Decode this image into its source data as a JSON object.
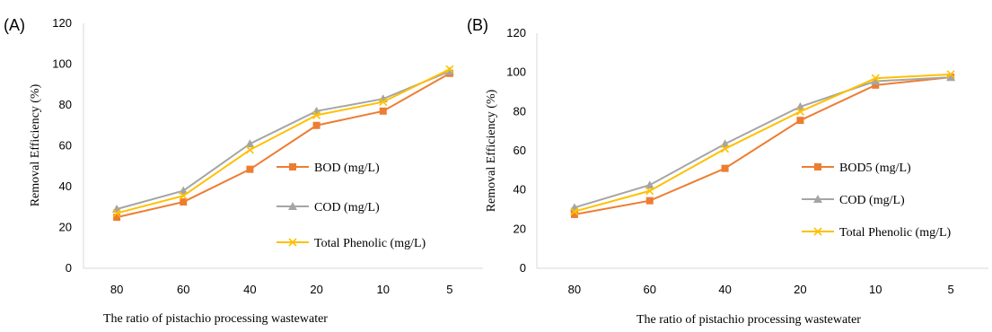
{
  "chart_data": [
    {
      "type": "line",
      "panel_label": "(A)",
      "categories": [
        "80",
        "60",
        "40",
        "20",
        "10",
        "5"
      ],
      "xlabel": "The ratio of pistachio processing wastewater",
      "ylabel": "Removal Efficiency (%)",
      "ylim": [
        0,
        120
      ],
      "yticks": [
        "0",
        "20",
        "40",
        "60",
        "80",
        "100",
        "120"
      ],
      "grid": false,
      "legend_position": "center-right",
      "series": [
        {
          "name": "BOD (mg/L)",
          "color": "#ED7D31",
          "marker": "square",
          "values": [
            25,
            32.5,
            48.5,
            70,
            77,
            95.5
          ]
        },
        {
          "name": "COD (mg/L)",
          "color": "#A5A5A5",
          "marker": "triangle",
          "values": [
            29,
            38,
            61,
            77,
            83,
            96.5
          ]
        },
        {
          "name": "Total Phenolic (mg/L)",
          "color": "#FFC000",
          "marker": "x",
          "values": [
            27,
            35.5,
            58,
            75,
            81.5,
            97.5
          ]
        }
      ]
    },
    {
      "type": "line",
      "panel_label": "(B)",
      "categories": [
        "80",
        "60",
        "40",
        "20",
        "10",
        "5"
      ],
      "xlabel": "The ratio of pistachio processing wastewater",
      "ylabel": "Removal Efficiency (%)",
      "ylim": [
        0,
        120
      ],
      "yticks": [
        "0",
        "20",
        "40",
        "60",
        "80",
        "100",
        "120"
      ],
      "grid": false,
      "legend_position": "center-right",
      "series": [
        {
          "name": "BOD5 (mg/L)",
          "color": "#ED7D31",
          "marker": "square",
          "values": [
            27.5,
            34.5,
            51,
            75.5,
            93.5,
            97.5
          ]
        },
        {
          "name": "COD (mg/L)",
          "color": "#A5A5A5",
          "marker": "triangle",
          "values": [
            31,
            42.5,
            63.5,
            82.5,
            95.5,
            97.5
          ]
        },
        {
          "name": "Total Phenolic (mg/L)",
          "color": "#FFC000",
          "marker": "x",
          "values": [
            29,
            39.5,
            61,
            80,
            97,
            99
          ]
        }
      ]
    }
  ]
}
